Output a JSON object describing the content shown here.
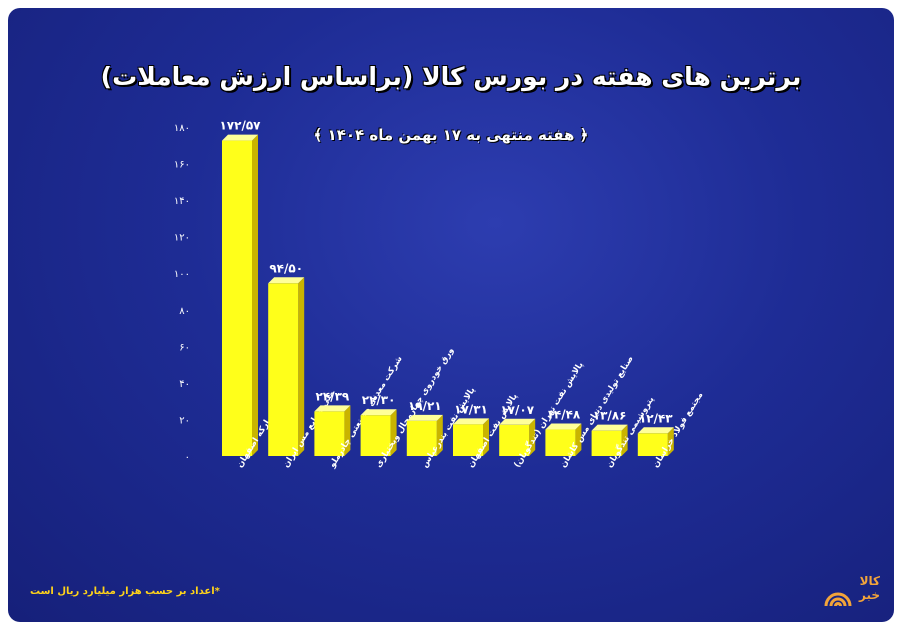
{
  "header": {
    "title": "برترین های هفته در بورس کالا (براساس ارزش معاملات)",
    "subtitle": "﴿ هفته منتهی به ۱۷ بهمن ماه ۱۴۰۴ ﴾"
  },
  "footnote": "*اعداد بر حسب هزار میلیارد ریال است",
  "logo": {
    "text": "کالا خبر",
    "color": "#f2a43a"
  },
  "colors": {
    "background": "#1e2c95",
    "bar_front": "#ffff1a",
    "bar_side": "#c9b400",
    "bar_top": "#ffff99",
    "label": "#ffffff",
    "footnote": "#ffd31a"
  },
  "chart_data": {
    "type": "bar",
    "title": "برترین های هفته در بورس کالا (براساس ارزش معاملات)",
    "subtitle": "﴿ هفته منتهی به ۱۷ بهمن ماه ۱۴۰۴ ﴾",
    "categories": [
      "فولاد مبارکه اصفهان",
      "ملی صنایع مس ایران",
      "شرکت معدنی وصنعتی چادرملو",
      "ورق خودروی چهارمحال وبختیاری",
      "پالایش نفت بندرعباس",
      "پالایش نفت اصفهان",
      "پالایش نفت تهران (تندگویان)",
      "صنایع تولیدی دنیای مس کاشان",
      "پتروشیمی تندگویان",
      "مجتمع فولاد خراسان"
    ],
    "values": [
      172.57,
      94.5,
      24.39,
      22.3,
      19.21,
      17.31,
      17.07,
      14.48,
      13.86,
      12.43
    ],
    "value_labels": [
      "۱۷۲/۵۷",
      "۹۴/۵۰",
      "۲۴/۳۹",
      "۲۲/۳۰",
      "۱۹/۲۱",
      "۱۷/۳۱",
      "۱۷/۰۷",
      "۱۴/۴۸",
      "۱۳/۸۶",
      "۱۲/۴۳"
    ],
    "y_ticks": [
      0,
      20,
      40,
      60,
      80,
      100,
      120,
      140,
      160,
      180
    ],
    "y_tick_labels": [
      "۰",
      "۲۰",
      "۴۰",
      "۶۰",
      "۸۰",
      "۱۰۰",
      "۱۲۰",
      "۱۴۰",
      "۱۶۰",
      "۱۸۰"
    ],
    "ylim": [
      0,
      180
    ],
    "grid": false,
    "legend": "none"
  }
}
